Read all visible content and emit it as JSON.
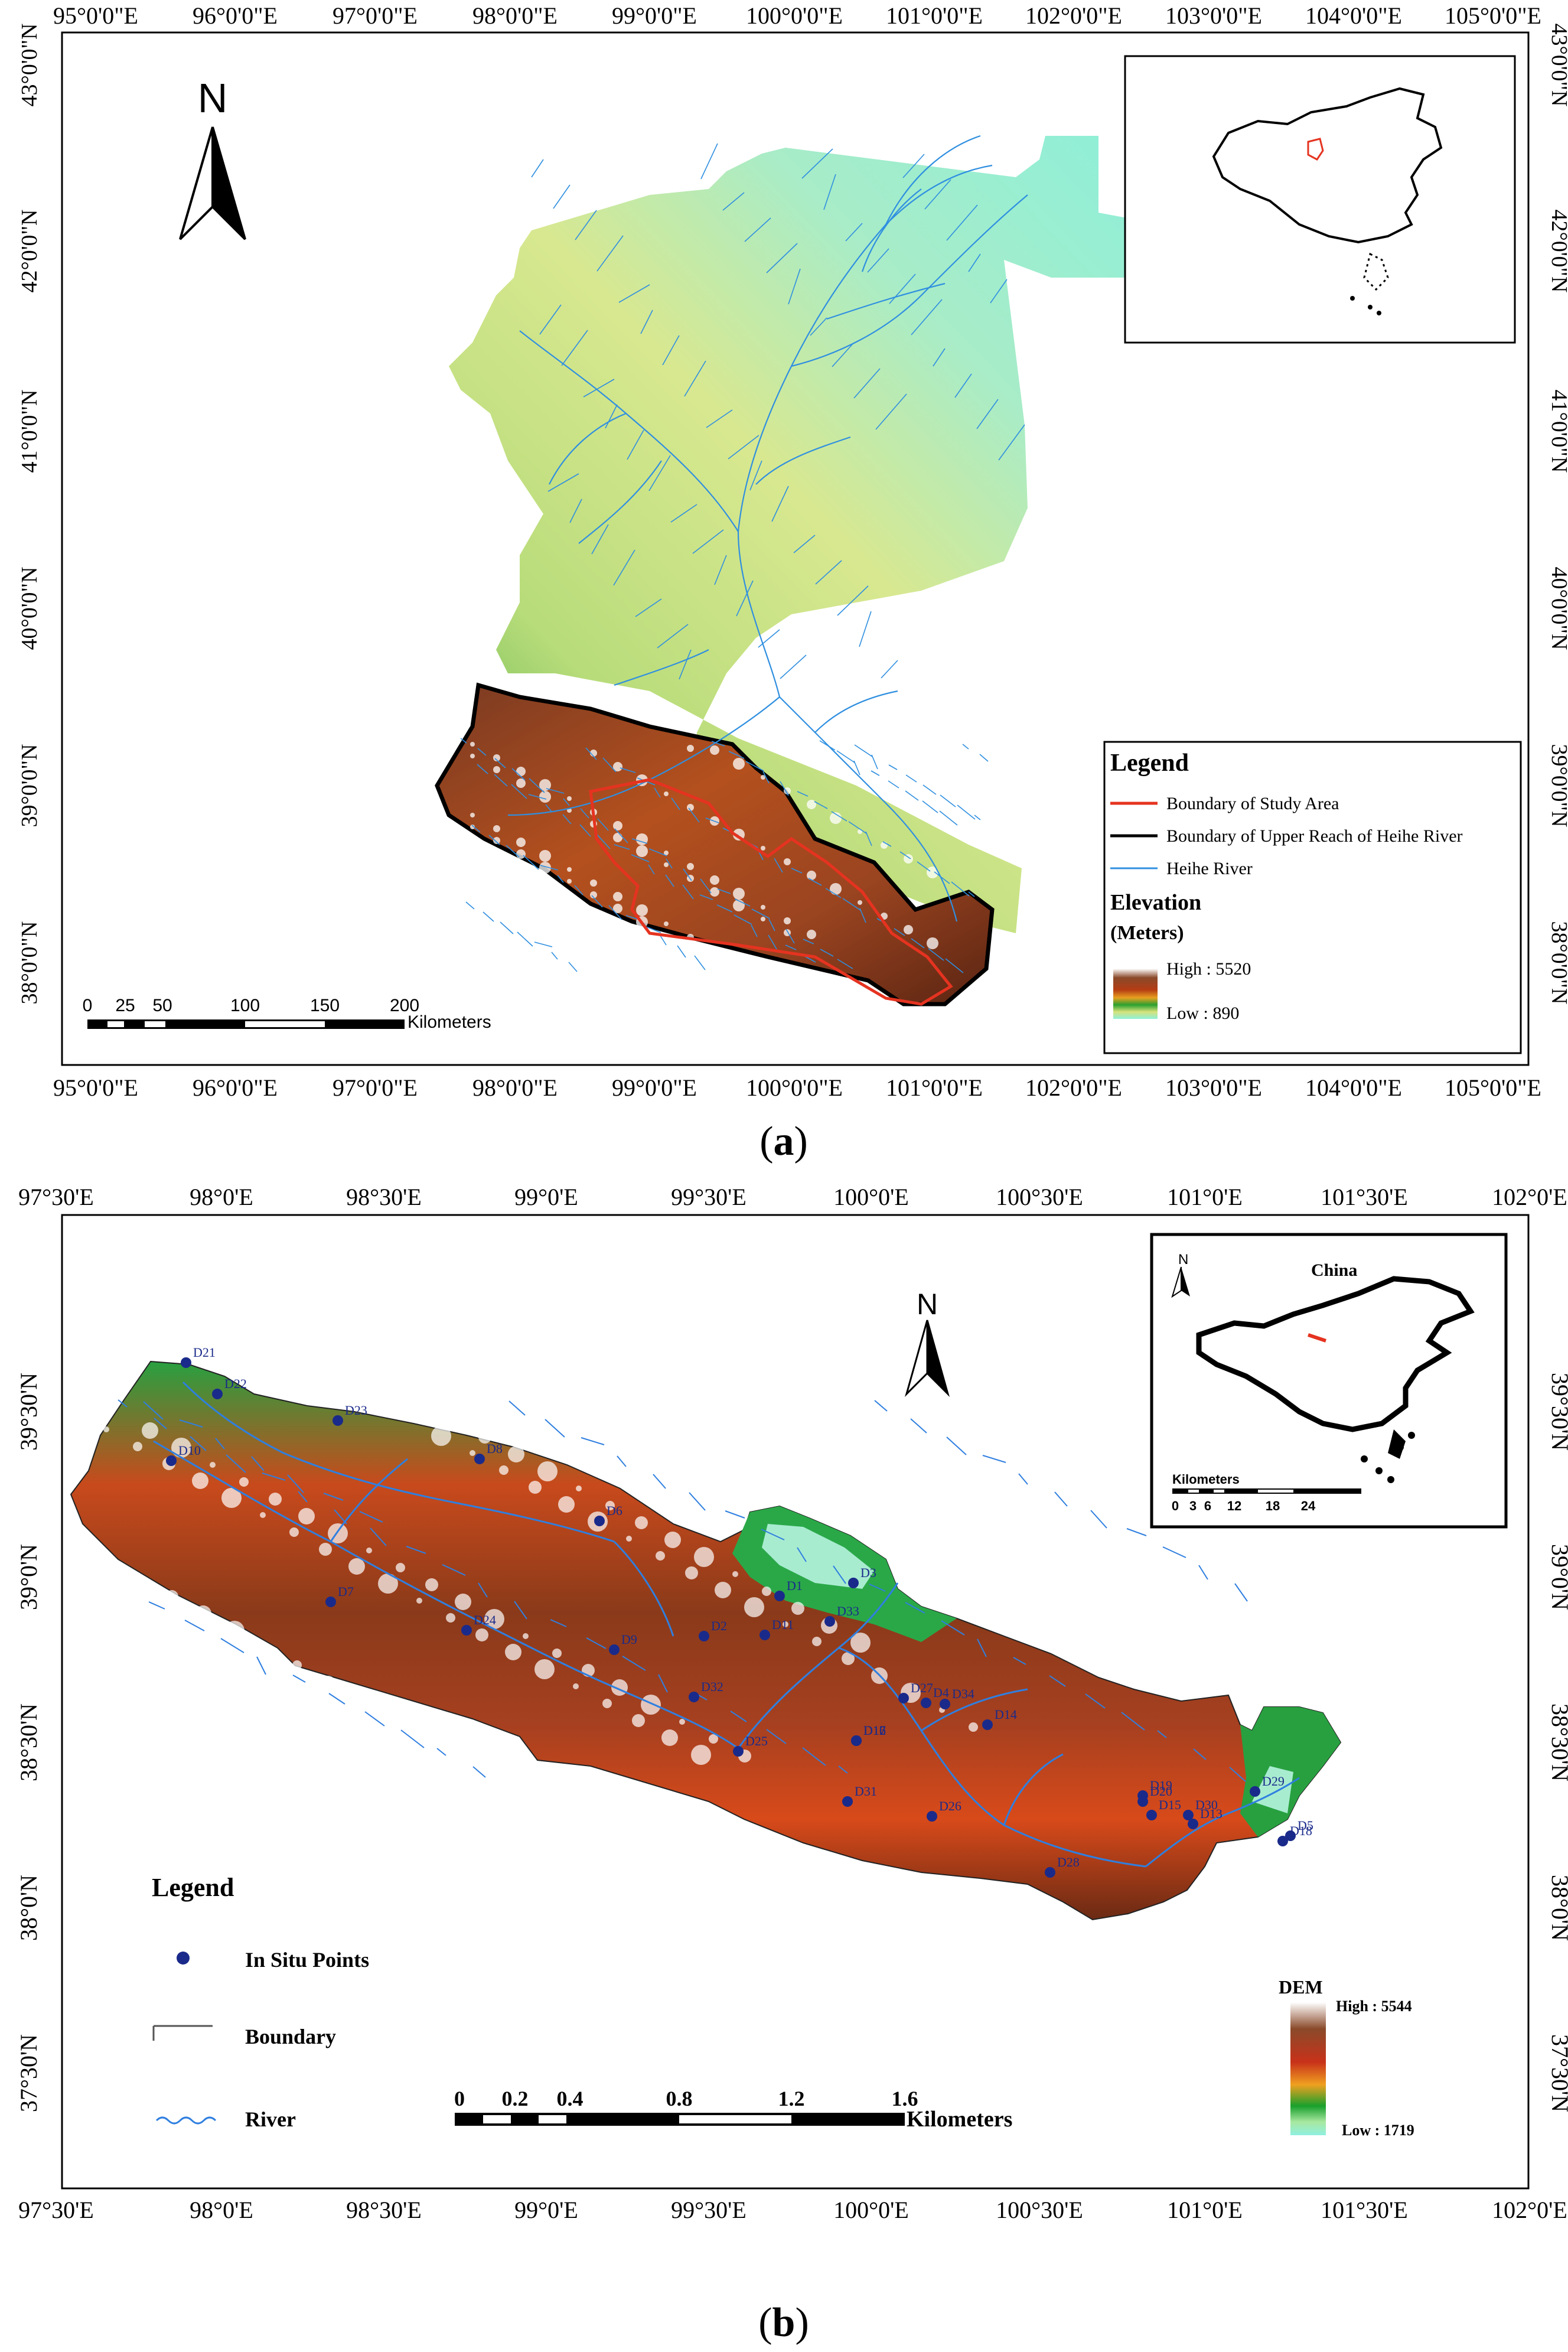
{
  "panel_a": {
    "top_lon_labels": [
      "95°0'0\"E",
      "96°0'0\"E",
      "97°0'0\"E",
      "98°0'0\"E",
      "99°0'0\"E",
      "100°0'0\"E",
      "101°0'0\"E",
      "102°0'0\"E",
      "103°0'0\"E",
      "104°0'0\"E",
      "105°0'0\"E"
    ],
    "bottom_lon_labels": [
      "95°0'0\"E",
      "96°0'0\"E",
      "97°0'0\"E",
      "98°0'0\"E",
      "99°0'0\"E",
      "100°0'0\"E",
      "101°0'0\"E",
      "102°0'0\"E",
      "103°0'0\"E",
      "104°0'0\"E",
      "105°0'0\"E"
    ],
    "lat_labels": [
      "43°0'0\"N",
      "42°0'0\"N",
      "41°0'0\"N",
      "40°0'0\"N",
      "39°0'0\"N",
      "38°0'0\"N"
    ],
    "north_label": "N",
    "scale_numbers": [
      "0",
      "25",
      "50",
      "100",
      "150",
      "200"
    ],
    "scale_unit": "Kilometers",
    "legend": {
      "title": "Legend",
      "items": [
        "Boundary of Study Area",
        "Boundary of Upper Reach of Heihe River",
        "Heihe River"
      ],
      "elev_title": "Elevation",
      "elev_unit": "(Meters)",
      "high": "High : 5520",
      "low": "Low : 890"
    },
    "caption_open": "(",
    "caption_letter": "a",
    "caption_close": ")"
  },
  "panel_b": {
    "top_lon_labels": [
      "97°30'E",
      "98°0'E",
      "98°30'E",
      "99°0'E",
      "99°30'E",
      "100°0'E",
      "100°30'E",
      "101°0'E",
      "101°30'E",
      "102°0'E"
    ],
    "bottom_lon_labels": [
      "97°30'E",
      "98°0'E",
      "98°30'E",
      "99°0'E",
      "99°30'E",
      "100°0'E",
      "100°30'E",
      "101°0'E",
      "101°30'E",
      "102°0'E"
    ],
    "lat_labels": [
      "39°30'N",
      "39°0'N",
      "38°30'N",
      "38°0'N",
      "37°30'N"
    ],
    "north_label": "N",
    "inset": {
      "title": "China",
      "north": "N",
      "scale_unit": "Kilometers",
      "scale_numbers": [
        "0",
        "3",
        "6",
        "12",
        "18",
        "24"
      ]
    },
    "points": [
      "D21",
      "D22",
      "D23",
      "D8",
      "D10",
      "D6",
      "D7",
      "D24",
      "D9",
      "D2",
      "D1",
      "D3",
      "D11",
      "D33",
      "D32",
      "D27",
      "D4",
      "D34",
      "D14",
      "D25",
      "D31",
      "D26",
      "D28",
      "D19",
      "D20",
      "D15",
      "D30",
      "D13",
      "D29",
      "D18",
      "D5",
      "D12",
      "D16",
      "D17"
    ],
    "legend": {
      "title": "Legend",
      "items": [
        "In Situ Points",
        "Boundary",
        "River"
      ]
    },
    "scale_numbers": [
      "0",
      "0.2",
      "0.4",
      "0.8",
      "1.2",
      "1.6"
    ],
    "scale_unit": "Kilometers",
    "dem": {
      "title": "DEM",
      "high": "High : 5544",
      "low": "Low : 1719"
    },
    "caption_open": "(",
    "caption_letter": "b",
    "caption_close": ")"
  }
}
